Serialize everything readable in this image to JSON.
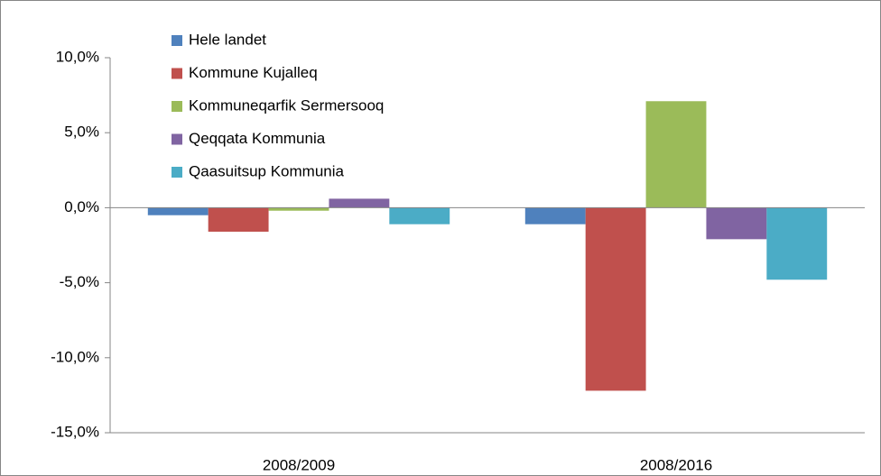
{
  "chart_data": {
    "type": "bar",
    "categories": [
      "2008/2009",
      "2008/2016"
    ],
    "series": [
      {
        "name": "Hele landet",
        "color": "#4f81bd",
        "values": [
          -0.5,
          -1.1
        ]
      },
      {
        "name": "Kommune Kujalleq",
        "color": "#c0504d",
        "values": [
          -1.6,
          -12.2
        ]
      },
      {
        "name": "Kommuneqarfik Sermersooq",
        "color": "#9bbb59",
        "values": [
          -0.2,
          7.1
        ]
      },
      {
        "name": "Qeqqata Kommunia",
        "color": "#8064a2",
        "values": [
          0.6,
          -2.1
        ]
      },
      {
        "name": "Qaasuitsup Kommunia",
        "color": "#4bacc6",
        "values": [
          -1.1,
          -4.8
        ]
      }
    ],
    "ylim": [
      -15,
      10
    ],
    "yticks": [
      {
        "value": -15,
        "label": "-15,0%"
      },
      {
        "value": -10,
        "label": "-10,0%"
      },
      {
        "value": -5,
        "label": "-5,0%"
      },
      {
        "value": 0,
        "label": "0,0%"
      },
      {
        "value": 5,
        "label": "5,0%"
      },
      {
        "value": 10,
        "label": "10,0%"
      }
    ],
    "legend": "top-left"
  }
}
